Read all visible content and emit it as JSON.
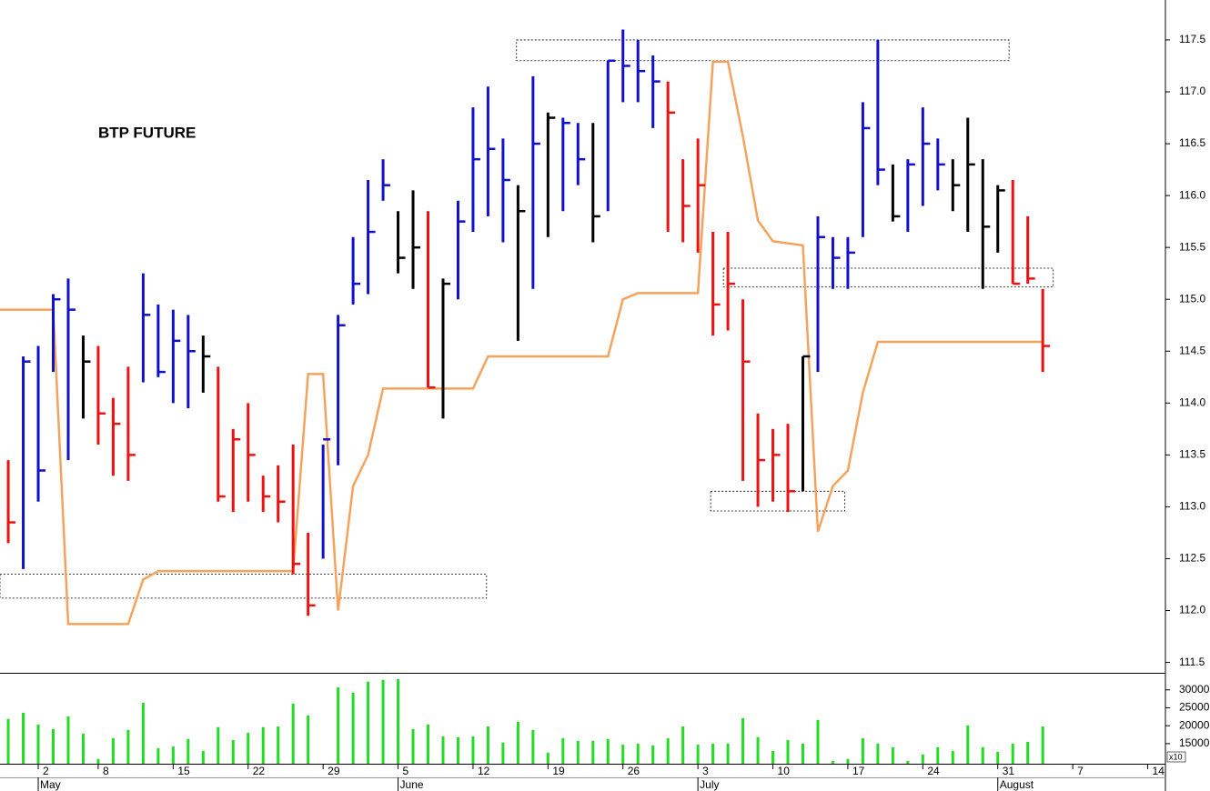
{
  "chart_data": [
    {
      "type": "ohlc",
      "title": "BTP FUTURE",
      "x": [
        0,
        1,
        2,
        3,
        4,
        5,
        6,
        7,
        8,
        9,
        10,
        11,
        12,
        13,
        14,
        15,
        16,
        17,
        18,
        19,
        20,
        21,
        22,
        23,
        24,
        25,
        26,
        27,
        28,
        29,
        30,
        31,
        32,
        33,
        34,
        35,
        36,
        37,
        38,
        39,
        40,
        41,
        42,
        43,
        44,
        45,
        46,
        47,
        48,
        49,
        50,
        51,
        52,
        53,
        54,
        55,
        56,
        57,
        58,
        59,
        60,
        61,
        62,
        63,
        64,
        65,
        66,
        67,
        68,
        69
      ],
      "high": [
        113.45,
        114.45,
        114.55,
        115.05,
        115.2,
        114.65,
        114.55,
        114.05,
        114.35,
        115.25,
        114.95,
        114.9,
        114.85,
        114.65,
        114.35,
        113.75,
        114.0,
        113.3,
        113.4,
        113.6,
        112.75,
        113.6,
        114.85,
        115.6,
        116.15,
        116.35,
        115.85,
        116.05,
        115.85,
        115.2,
        115.95,
        116.85,
        117.05,
        116.55,
        116.1,
        117.15,
        116.8,
        116.75,
        116.7,
        116.7,
        117.3,
        117.6,
        117.5,
        117.35,
        117.1,
        116.35,
        116.55,
        115.65,
        115.65,
        115.0,
        113.9,
        113.75,
        113.8,
        114.45,
        115.8,
        115.6,
        115.6,
        116.9,
        117.5,
        116.3,
        116.35,
        116.85,
        116.55,
        116.35,
        116.75,
        116.35,
        116.1,
        116.15,
        115.8,
        115.1
      ],
      "low": [
        112.65,
        112.4,
        113.05,
        114.3,
        113.45,
        113.85,
        113.6,
        113.3,
        113.25,
        114.2,
        114.25,
        114.0,
        113.95,
        114.1,
        113.05,
        112.95,
        113.05,
        112.95,
        112.85,
        112.35,
        111.95,
        112.5,
        113.4,
        114.95,
        115.05,
        115.95,
        115.25,
        115.1,
        114.15,
        113.85,
        115.0,
        115.65,
        115.8,
        115.55,
        114.6,
        115.1,
        115.6,
        115.85,
        116.1,
        115.55,
        115.85,
        116.9,
        116.9,
        116.65,
        115.65,
        115.55,
        115.45,
        114.65,
        114.7,
        113.25,
        113.0,
        113.05,
        112.95,
        113.15,
        114.3,
        115.1,
        115.1,
        115.6,
        116.1,
        115.75,
        115.65,
        115.9,
        116.05,
        115.85,
        115.65,
        115.1,
        115.45,
        115.15,
        115.15,
        114.3
      ],
      "close": [
        112.85,
        114.4,
        113.35,
        115.0,
        114.9,
        114.4,
        113.9,
        113.8,
        113.5,
        114.85,
        114.3,
        114.6,
        114.5,
        114.45,
        113.1,
        113.65,
        113.5,
        113.1,
        113.05,
        112.45,
        112.05,
        113.65,
        114.75,
        115.15,
        115.65,
        116.1,
        115.4,
        115.5,
        114.15,
        115.15,
        115.75,
        116.35,
        116.45,
        116.15,
        115.85,
        116.5,
        116.75,
        116.7,
        116.35,
        115.8,
        117.3,
        117.25,
        117.2,
        117.1,
        116.8,
        115.9,
        116.1,
        114.95,
        115.15,
        114.4,
        113.45,
        113.5,
        113.15,
        114.45,
        115.6,
        115.4,
        115.45,
        116.65,
        116.25,
        115.8,
        116.3,
        116.5,
        116.3,
        116.1,
        116.3,
        115.7,
        116.05,
        115.15,
        115.2,
        114.55
      ],
      "colors": [
        "#ee1111",
        "#1111cc",
        "#1111cc",
        "#1111cc",
        "#1111cc",
        "#000000",
        "#ee1111",
        "#ee1111",
        "#ee1111",
        "#1111cc",
        "#1111cc",
        "#1111cc",
        "#1111cc",
        "#000000",
        "#ee1111",
        "#ee1111",
        "#ee1111",
        "#ee1111",
        "#ee1111",
        "#ee1111",
        "#ee1111",
        "#1111cc",
        "#1111cc",
        "#1111cc",
        "#1111cc",
        "#1111cc",
        "#000000",
        "#000000",
        "#ee1111",
        "#000000",
        "#1111cc",
        "#1111cc",
        "#1111cc",
        "#1111cc",
        "#000000",
        "#1111cc",
        "#000000",
        "#1111cc",
        "#1111cc",
        "#000000",
        "#1111cc",
        "#1111cc",
        "#1111cc",
        "#1111cc",
        "#ee1111",
        "#ee1111",
        "#ee1111",
        "#ee1111",
        "#ee1111",
        "#ee1111",
        "#ee1111",
        "#ee1111",
        "#ee1111",
        "#000000",
        "#1111cc",
        "#1111cc",
        "#1111cc",
        "#1111cc",
        "#1111cc",
        "#000000",
        "#1111cc",
        "#1111cc",
        "#1111cc",
        "#000000",
        "#000000",
        "#000000",
        "#000000",
        "#ee1111",
        "#ee1111",
        "#ee1111"
      ],
      "line": {
        "color": "#f5a35c",
        "x": [
          -0.55,
          3,
          4,
          8,
          9,
          10,
          19,
          20,
          21,
          22,
          23,
          24,
          25,
          31,
          32,
          40,
          41,
          42,
          46,
          47,
          48,
          49,
          50,
          51,
          53,
          54,
          55,
          56,
          57,
          58,
          69
        ],
        "values": [
          114.9,
          114.9,
          111.87,
          111.87,
          112.3,
          112.38,
          112.38,
          114.28,
          114.28,
          112.0,
          113.2,
          113.5,
          114.14,
          114.14,
          114.45,
          114.45,
          115.0,
          115.06,
          115.06,
          117.29,
          117.29,
          116.57,
          115.76,
          115.56,
          115.52,
          112.76,
          113.2,
          113.35,
          114.1,
          114.59,
          114.59
        ]
      },
      "zones": [
        {
          "xlim": [
            33.9,
            66.75
          ],
          "ylim": [
            117.3,
            117.5
          ]
        },
        {
          "xlim": [
            -0.55,
            31.9
          ],
          "ylim": [
            112.12,
            112.35
          ]
        },
        {
          "xlim": [
            46.85,
            55.8
          ],
          "ylim": [
            112.96,
            113.15
          ]
        },
        {
          "xlim": [
            47.7,
            69.7
          ],
          "ylim": [
            115.12,
            115.3
          ]
        }
      ],
      "xlim": [
        -0.55,
        77.12
      ],
      "ylim": [
        111.4,
        117.885
      ],
      "yticks": [
        111.5,
        {
          "value": 112,
          "label": "112.0"
        },
        112.5,
        {
          "value": 113,
          "label": "113.0"
        },
        113.5,
        {
          "value": 114,
          "label": "114.0"
        },
        114.5,
        {
          "value": 115,
          "label": "115.0"
        },
        115.5,
        {
          "value": 116,
          "label": "116.0"
        },
        116.5,
        {
          "value": 117,
          "label": "117.0"
        },
        117.5
      ]
    },
    {
      "type": "bar",
      "color": "#22dd22",
      "scale_label": "x10",
      "x": [
        0,
        1,
        2,
        3,
        4,
        5,
        6,
        7,
        8,
        9,
        10,
        11,
        12,
        13,
        14,
        15,
        16,
        17,
        18,
        19,
        20,
        21,
        22,
        23,
        24,
        25,
        26,
        27,
        28,
        29,
        30,
        31,
        32,
        33,
        34,
        35,
        36,
        37,
        38,
        39,
        40,
        41,
        42,
        43,
        44,
        45,
        46,
        47,
        48,
        49,
        50,
        51,
        52,
        53,
        54,
        55,
        56,
        57,
        58,
        59,
        60,
        61,
        62,
        63,
        64,
        65,
        66,
        67,
        68,
        69
      ],
      "values": [
        21900,
        23600,
        20300,
        19100,
        22600,
        17800,
        10700,
        16500,
        18800,
        26400,
        13700,
        14200,
        16300,
        13000,
        19600,
        16000,
        18000,
        19600,
        19800,
        26200,
        22900,
        null,
        30700,
        29200,
        32300,
        32800,
        33000,
        19100,
        20300,
        17000,
        16800,
        17000,
        19800,
        15300,
        21100,
        18800,
        12500,
        16500,
        15800,
        15800,
        16300,
        14700,
        15000,
        14500,
        16500,
        19800,
        14700,
        15000,
        15000,
        22100,
        16800,
        13000,
        16000,
        15000,
        21600,
        10200,
        10700,
        16500,
        15000,
        14000,
        10200,
        12000,
        14000,
        13000,
        20100,
        14000,
        12700,
        15000,
        15500,
        19800
      ],
      "xlim": [
        -0.55,
        77.12
      ],
      "ylim": [
        9400,
        34500
      ],
      "yticks": [
        15000,
        20000,
        25000,
        30000
      ],
      "xticks": [
        {
          "value": 2,
          "label": "2"
        },
        {
          "value": 6,
          "label": "8"
        },
        {
          "value": 11,
          "label": "15"
        },
        {
          "value": 16,
          "label": "22"
        },
        {
          "value": 21,
          "label": "29"
        },
        {
          "value": 26,
          "label": "5"
        },
        {
          "value": 31,
          "label": "12"
        },
        {
          "value": 36,
          "label": "19"
        },
        {
          "value": 41,
          "label": "26"
        },
        {
          "value": 46,
          "label": "3"
        },
        {
          "value": 51,
          "label": "10"
        },
        {
          "value": 56,
          "label": "17"
        },
        {
          "value": 61,
          "label": "24"
        },
        {
          "value": 66,
          "label": "31"
        },
        {
          "value": 71,
          "label": "7"
        },
        {
          "value": 76,
          "label": "14"
        }
      ],
      "months": [
        {
          "value": 2,
          "label": "May"
        },
        {
          "value": 26,
          "label": "June"
        },
        {
          "value": 46,
          "label": "July"
        },
        {
          "value": 66,
          "label": "August"
        }
      ]
    }
  ]
}
